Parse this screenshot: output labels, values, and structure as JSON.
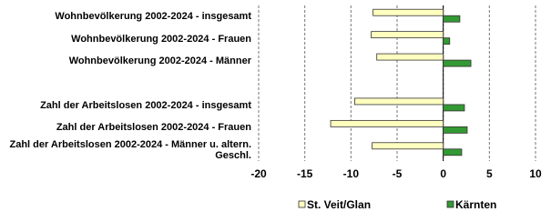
{
  "chart_data": {
    "type": "hbar",
    "categories": [
      "Wohnbevölkerung 2002-2024 - insgesamt",
      "Wohnbevölkerung 2002-2024 - Frauen",
      "Wohnbevölkerung 2002-2024 - Männer",
      null,
      "Zahl der Arbeitslosen 2002-2024 - insgesamt",
      "Zahl der Arbeitslosen 2002-2024 - Frauen",
      "Zahl der Arbeitslosen 2002-2024 - Männer u. altern. Geschl."
    ],
    "series": [
      {
        "name": "St. Veit/Glan",
        "color": "#ffffc0",
        "values": [
          -7.6,
          -7.8,
          -7.2,
          null,
          -9.6,
          -12.2,
          -7.7
        ]
      },
      {
        "name": "Kärnten",
        "color": "#339933",
        "values": [
          1.8,
          0.7,
          3.0,
          null,
          2.3,
          2.6,
          2.0
        ]
      }
    ],
    "xlim": [
      -20,
      10
    ],
    "xticks": [
      -20,
      -15,
      -10,
      -5,
      0,
      5,
      10
    ],
    "grid": true,
    "legend": "bottom"
  }
}
